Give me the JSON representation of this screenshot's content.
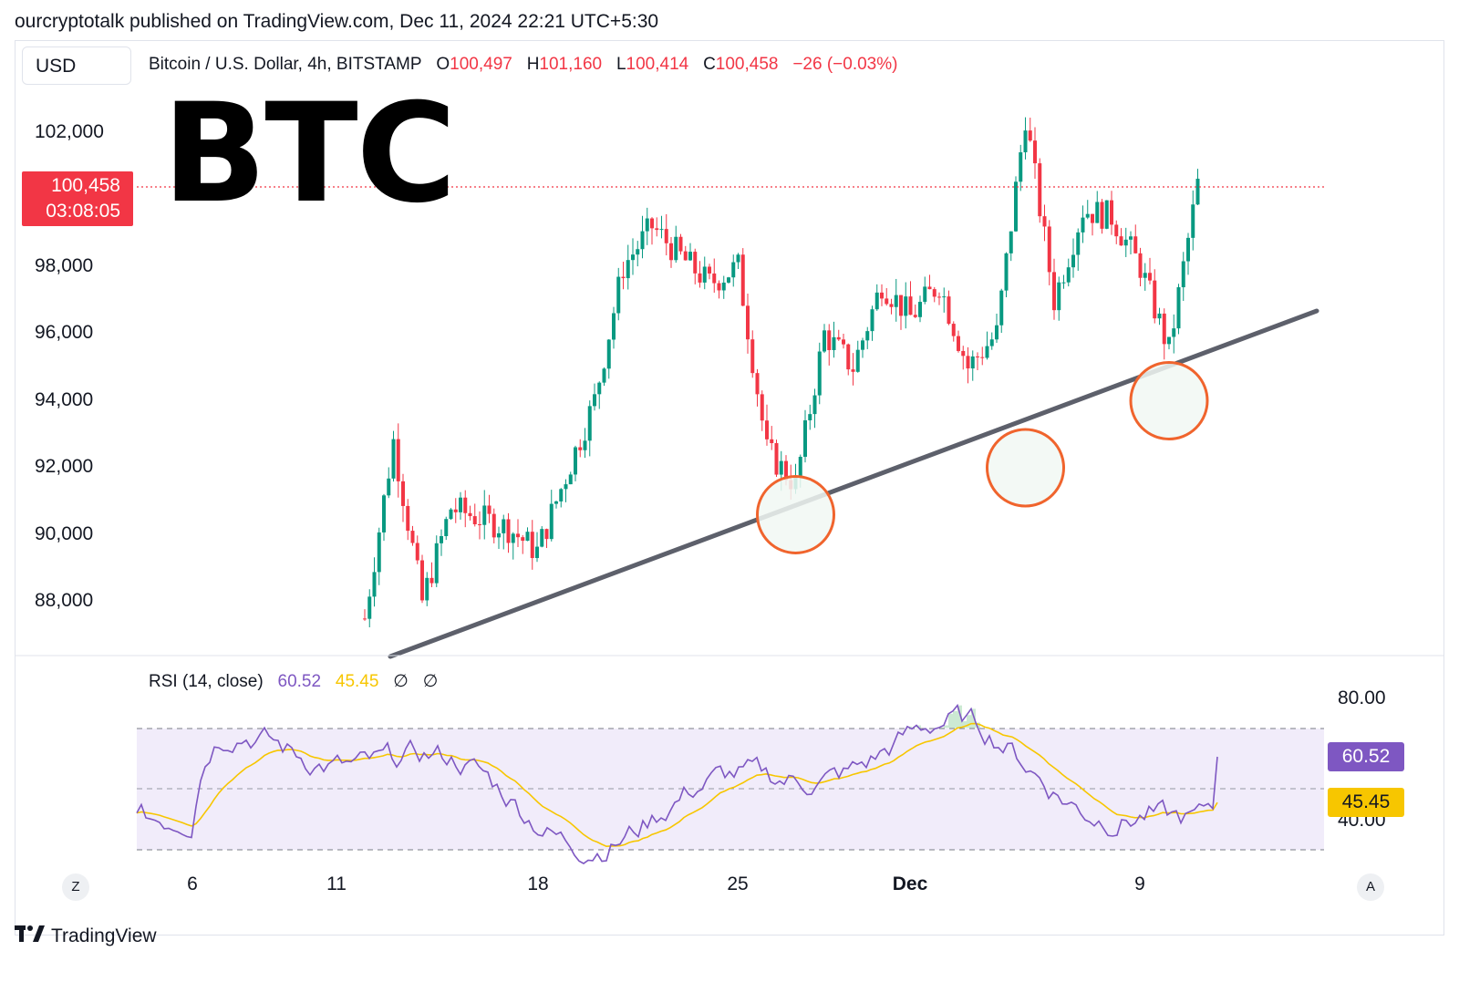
{
  "header": {
    "text": "ourcryptotalk published on TradingView.com, Dec 11, 2024 22:21 UTC+5:30"
  },
  "currency_button": "USD",
  "symbol": {
    "title": "Bitcoin / U.S. Dollar, 4h, BITSTAMP",
    "o_label": "O",
    "o_value": "100,497",
    "h_label": "H",
    "h_value": "101,160",
    "l_label": "L",
    "l_value": "100,414",
    "c_label": "C",
    "c_value": "100,458",
    "change": "−26 (−0.03%)"
  },
  "overlay_text": "BTC",
  "price_tag": {
    "price": "100,458",
    "countdown": "03:08:05"
  },
  "rsi": {
    "title": "RSI (14, close)",
    "value": "60.52",
    "ma_value": "45.45",
    "extra1": "∅",
    "extra2": "∅",
    "axis_80": "80.00",
    "axis_40": "40.00"
  },
  "x_axis": {
    "labels": [
      "6",
      "11",
      "18",
      "25",
      "Dec",
      "9"
    ]
  },
  "corner_buttons": {
    "left": "Z",
    "right": "A"
  },
  "footer": {
    "brand": "TradingView"
  },
  "colors": {
    "up": "#089981",
    "down": "#f23645",
    "trendline": "#5d606b",
    "circle": "#f0642d",
    "rsi_line": "#7e57c2",
    "rsi_ma": "#f7c600"
  },
  "chart_data": {
    "type": "candlestick",
    "symbol": "Bitcoin / U.S. Dollar",
    "timeframe": "4h",
    "exchange": "BITSTAMP",
    "price_axis_ticks": [
      88000,
      90000,
      92000,
      94000,
      96000,
      98000,
      102000
    ],
    "last_price": 100458,
    "ylim": [
      86500,
      103500
    ],
    "price_path_approx": [
      {
        "date": "Nov 12",
        "price": 87500
      },
      {
        "date": "Nov 13",
        "price": 92800
      },
      {
        "date": "Nov 14",
        "price": 88000
      },
      {
        "date": "Nov 15",
        "price": 90800
      },
      {
        "date": "Nov 17",
        "price": 90200
      },
      {
        "date": "Nov 18",
        "price": 89500
      },
      {
        "date": "Nov 20",
        "price": 94000
      },
      {
        "date": "Nov 21",
        "price": 98000
      },
      {
        "date": "Nov 22",
        "price": 99200
      },
      {
        "date": "Nov 23",
        "price": 98300
      },
      {
        "date": "Nov 24",
        "price": 97500
      },
      {
        "date": "Nov 25",
        "price": 98000
      },
      {
        "date": "Nov 26",
        "price": 92500
      },
      {
        "date": "Nov 27",
        "price": 91500
      },
      {
        "date": "Nov 28",
        "price": 96000
      },
      {
        "date": "Nov 29",
        "price": 95000
      },
      {
        "date": "Nov 30",
        "price": 97500
      },
      {
        "date": "Dec 1",
        "price": 96500
      },
      {
        "date": "Dec 2",
        "price": 97500
      },
      {
        "date": "Dec 3",
        "price": 95000
      },
      {
        "date": "Dec 4",
        "price": 96000
      },
      {
        "date": "Dec 5",
        "price": 102500
      },
      {
        "date": "Dec 6",
        "price": 97000
      },
      {
        "date": "Dec 7",
        "price": 99700
      },
      {
        "date": "Dec 8",
        "price": 99500
      },
      {
        "date": "Dec 9",
        "price": 98000
      },
      {
        "date": "Dec 10",
        "price": 95500
      },
      {
        "date": "Dec 11",
        "price": 100458
      }
    ],
    "trendline": {
      "start": {
        "date": "Nov 12",
        "price": 86900
      },
      "end": {
        "date": "Dec 14",
        "price": 96700
      }
    },
    "highlight_circles": [
      {
        "date": "Nov 27",
        "price": 90600
      },
      {
        "date": "Dec 5",
        "price": 92000
      },
      {
        "date": "Dec 10",
        "price": 94000
      }
    ],
    "rsi": {
      "period": 14,
      "source": "close",
      "last": 60.52,
      "ma_last": 45.45,
      "bands": [
        30,
        50,
        70
      ],
      "axis_ticks": [
        40,
        80
      ]
    }
  }
}
